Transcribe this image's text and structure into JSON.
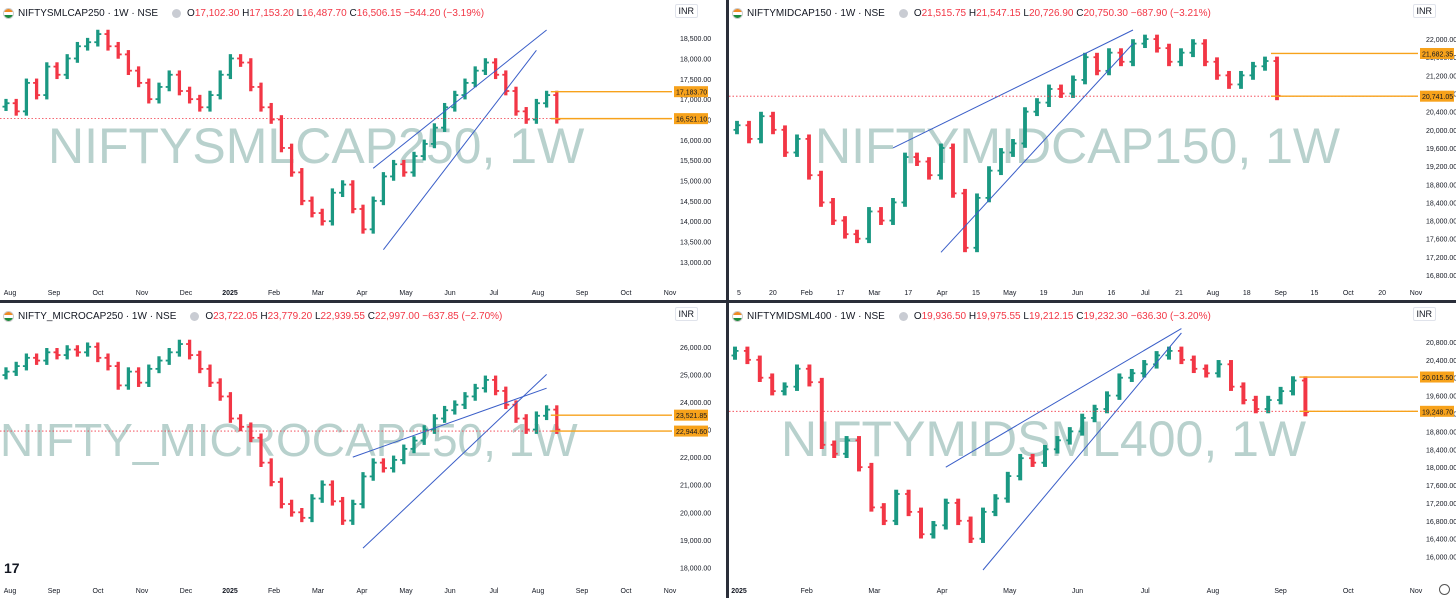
{
  "colors": {
    "up": "#1a9882",
    "down": "#f23645",
    "wedge": "#3a5ec8",
    "level": "#f7a21b",
    "dotted": "#f23645",
    "watermark": "#b8d1cd"
  },
  "charts": [
    {
      "symbol": "NIFTYSMLCAP250 · 1W · NSE",
      "currency": "INR",
      "o": "17,102.30",
      "h": "17,153.20",
      "l": "16,487.70",
      "c": "16,506.15",
      "chg": "−544.20 (−3.19%)",
      "watermark": "NIFTYSMLCAP250, 1W",
      "yticks": [
        "18,500.00",
        "18,000.00",
        "17,500.00",
        "17,000.00",
        "16,500.00",
        "16,000.00",
        "15,500.00",
        "15,000.00",
        "14,500.00",
        "14,000.00",
        "13,500.00",
        "13,000.00"
      ],
      "tags": [
        {
          "label": "17,183.70",
          "value": 17183.7,
          "type": "level"
        },
        {
          "label": "16,521.10",
          "value": 16521.1,
          "type": "current"
        }
      ],
      "xticks": [
        "Aug",
        "Sep",
        "Oct",
        "Nov",
        "Dec",
        "2025",
        "Feb",
        "Mar",
        "Apr",
        "May",
        "Jun",
        "Jul",
        "Aug",
        "Sep",
        "Oct",
        "Nov"
      ]
    },
    {
      "symbol": "NIFTYMIDCAP150 · 1W · NSE",
      "currency": "INR",
      "o": "21,515.75",
      "h": "21,547.15",
      "l": "20,726.90",
      "c": "20,750.30",
      "chg": "−687.90 (−3.21%)",
      "watermark": "NIFTYMIDCAP150, 1W",
      "yticks": [
        "22,000.00",
        "21,600.00",
        "21,200.00",
        "20,800.00",
        "20,400.00",
        "20,000.00",
        "19,600.00",
        "19,200.00",
        "18,800.00",
        "18,400.00",
        "18,000.00",
        "17,600.00",
        "17,200.00",
        "16,800.00"
      ],
      "tags": [
        {
          "label": "21,682.35",
          "value": 21682.35,
          "type": "level"
        },
        {
          "label": "20,741.05",
          "value": 20741.05,
          "type": "current"
        }
      ],
      "xticks": [
        "5",
        "20",
        "Feb",
        "17",
        "Mar",
        "17",
        "Apr",
        "15",
        "May",
        "19",
        "Jun",
        "16",
        "Jul",
        "21",
        "Aug",
        "18",
        "Sep",
        "15",
        "Oct",
        "20",
        "Nov"
      ]
    },
    {
      "symbol": "NIFTY_MICROCAP250 · 1W · NSE",
      "currency": "INR",
      "o": "23,722.05",
      "h": "23,779.20",
      "l": "22,939.55",
      "c": "22,997.00",
      "chg": "−637.85 (−2.70%)",
      "watermark": "NIFTY_MICROCAP250, 1W",
      "yticks": [
        "26,000.00",
        "25,000.00",
        "24,000.00",
        "23,000.00",
        "22,000.00",
        "21,000.00",
        "20,000.00",
        "19,000.00",
        "18,000.00"
      ],
      "tags": [
        {
          "label": "23,521.85",
          "value": 23521.85,
          "type": "level"
        },
        {
          "label": "22,944.60",
          "value": 22944.6,
          "type": "current"
        }
      ],
      "xticks": [
        "Aug",
        "Sep",
        "Oct",
        "Nov",
        "Dec",
        "2025",
        "Feb",
        "Mar",
        "Apr",
        "May",
        "Jun",
        "Jul",
        "Aug",
        "Sep",
        "Oct",
        "Nov"
      ]
    },
    {
      "symbol": "NIFTYMIDSML400 · 1W · NSE",
      "currency": "INR",
      "o": "19,936.50",
      "h": "19,975.55",
      "l": "19,212.15",
      "c": "19,232.30",
      "chg": "−636.30 (−3.20%)",
      "watermark": "NIFTYMIDSML400, 1W",
      "yticks": [
        "20,800.00",
        "20,400.00",
        "20,000.00",
        "19,600.00",
        "19,200.00",
        "18,800.00",
        "18,400.00",
        "18,000.00",
        "17,600.00",
        "17,200.00",
        "16,800.00",
        "16,400.00",
        "16,000.00"
      ],
      "tags": [
        {
          "label": "20,015.50",
          "value": 20015.5,
          "type": "level"
        },
        {
          "label": "19,248.70",
          "value": 19248.7,
          "type": "current"
        }
      ],
      "xticks": [
        "2025",
        "Feb",
        "Mar",
        "Apr",
        "May",
        "Jun",
        "Jul",
        "Aug",
        "Sep",
        "Oct",
        "Nov"
      ]
    }
  ],
  "chart_data": [
    {
      "type": "ohlc",
      "title": "NIFTYSMLCAP250 · 1W · NSE",
      "ylim": [
        12800,
        18700
      ],
      "grid": false,
      "series": [
        {
          "name": "NIFTYSMLCAP250",
          "close": [
            16900,
            16700,
            17400,
            17100,
            17800,
            17600,
            18000,
            18300,
            18400,
            18600,
            18300,
            18100,
            17700,
            17400,
            17000,
            17300,
            17600,
            17200,
            17000,
            16800,
            17100,
            17600,
            18000,
            17900,
            17300,
            16800,
            16500,
            15800,
            15200,
            14500,
            14200,
            14000,
            14700,
            14900,
            14300,
            13800,
            14500,
            15100,
            15400,
            15200,
            15600,
            15900,
            16300,
            16800,
            17100,
            17400,
            17700,
            17900,
            17600,
            17200,
            16700,
            16500,
            16900,
            17100,
            16506
          ]
        }
      ]
    },
    {
      "type": "ohlc",
      "title": "NIFTYMIDCAP150 · 1W · NSE",
      "ylim": [
        16800,
        22200
      ],
      "grid": false,
      "series": [
        {
          "name": "NIFTYMIDCAP150",
          "close": [
            20100,
            19800,
            20300,
            20000,
            19500,
            19800,
            19000,
            18400,
            18000,
            17700,
            17600,
            18200,
            18000,
            18400,
            19400,
            19300,
            19000,
            19600,
            18600,
            17400,
            18500,
            19100,
            19500,
            19700,
            20400,
            20600,
            20900,
            20800,
            21100,
            21600,
            21300,
            21700,
            21500,
            21900,
            22000,
            21800,
            21500,
            21700,
            21900,
            21500,
            21200,
            21000,
            21200,
            21400,
            21516,
            20750
          ]
        }
      ]
    },
    {
      "type": "ohlc",
      "title": "NIFTY_MICROCAP250 · 1W · NSE",
      "ylim": [
        17800,
        26500
      ],
      "grid": false,
      "series": [
        {
          "name": "NIFTY_MICROCAP250",
          "close": [
            25100,
            25300,
            25600,
            25500,
            25800,
            25700,
            25900,
            25800,
            26000,
            25600,
            25300,
            24600,
            25100,
            24700,
            25200,
            25500,
            25800,
            26100,
            25700,
            25200,
            24700,
            24200,
            23400,
            23100,
            22700,
            21800,
            21100,
            20300,
            20000,
            19800,
            20500,
            21000,
            20400,
            19700,
            20300,
            21300,
            21800,
            21600,
            21900,
            22300,
            22600,
            23000,
            23400,
            23700,
            23900,
            24200,
            24500,
            24800,
            24400,
            23900,
            23400,
            23000,
            23500,
            23722,
            22997
          ]
        }
      ]
    },
    {
      "type": "ohlc",
      "title": "NIFTYMIDSML400 · 1W · NSE",
      "ylim": [
        15700,
        21000
      ],
      "grid": false,
      "series": [
        {
          "name": "NIFTYMIDSML400",
          "close": [
            20600,
            20400,
            20000,
            19700,
            19800,
            20200,
            19900,
            18500,
            18300,
            18600,
            18000,
            17100,
            16800,
            17400,
            17000,
            16500,
            16700,
            17200,
            16800,
            16400,
            17000,
            17300,
            17800,
            18200,
            18100,
            18400,
            18600,
            18800,
            19100,
            19300,
            19600,
            20000,
            20100,
            20300,
            20500,
            20600,
            20400,
            20200,
            20100,
            20300,
            19800,
            19500,
            19300,
            19500,
            19700,
            19937,
            19232
          ]
        }
      ]
    }
  ]
}
